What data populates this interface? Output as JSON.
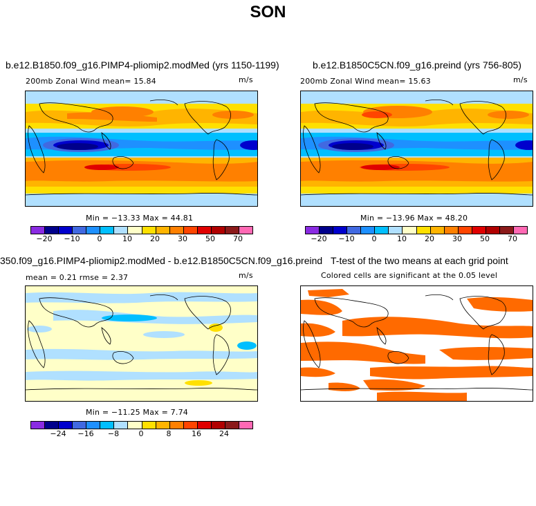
{
  "title": "SON",
  "panels": {
    "top_left": {
      "title": "b.e12.B1850.f09_g16.PIMP4-pliomip2.modMed (yrs 1150-1199)",
      "subtitle": "200mb Zonal Wind  mean=  15.84",
      "units": "m/s",
      "minmax": "Min = −13.33 Max =  44.81"
    },
    "top_right": {
      "title": "b.e12.B1850C5CN.f09_g16.preind (yrs 756-805)",
      "subtitle": "200mb Zonal Wind  mean=  15.63",
      "units": "m/s",
      "minmax": "Min = −13.96 Max =  48.20"
    },
    "bottom_left": {
      "title": "350.f09_g16.PIMP4-pliomip2.modMed - b.e12.B1850C5CN.f09_g16.preind",
      "subtitle": "mean =   0.21    rmse =   2.37",
      "units": "m/s",
      "minmax": "Min = −11.25 Max =   7.74"
    },
    "bottom_right": {
      "title": "T-test of the two means at each grid point",
      "subtitle": "Colored cells are significant at the 0.05 level"
    }
  },
  "colorbar_top": {
    "colors": [
      "#8a2be2",
      "#00008b",
      "#0000cd",
      "#4169e1",
      "#1e90ff",
      "#00bfff",
      "#b0e0ff",
      "#ffffc8",
      "#ffe000",
      "#ffb400",
      "#ff8000",
      "#ff4500",
      "#e00000",
      "#b00000",
      "#8b1a1a",
      "#ff69b4"
    ],
    "ticks": [
      "−20",
      "−10",
      "0",
      "10",
      "20",
      "30",
      "50",
      "70"
    ]
  },
  "colorbar_diff": {
    "colors": [
      "#8a2be2",
      "#00008b",
      "#0000cd",
      "#4169e1",
      "#1e90ff",
      "#00bfff",
      "#b0e0ff",
      "#ffffc8",
      "#ffe000",
      "#ffb400",
      "#ff8000",
      "#ff4500",
      "#e00000",
      "#b00000",
      "#8b1a1a",
      "#ff69b4"
    ],
    "ticks": [
      "−24",
      "−16",
      "−8",
      "0",
      "8",
      "16",
      "24"
    ]
  },
  "colors": {
    "jet_red": "#e00000",
    "jet_orange": "#ff8c00",
    "easterly_blue": "#00008b",
    "significant": "#ff6a00"
  }
}
